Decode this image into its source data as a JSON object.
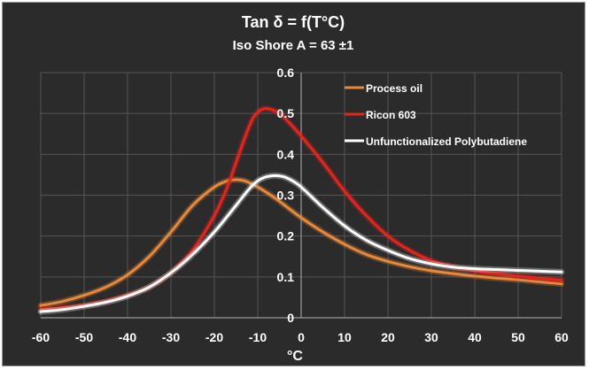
{
  "chart_data": {
    "type": "line",
    "title": "Tan δ = f(T°C)",
    "subtitle": "Iso Shore A = 63 ±1",
    "xlabel": "°C",
    "ylabel": "",
    "xlim": [
      -60,
      60
    ],
    "ylim": [
      0,
      0.6
    ],
    "xticks": [
      -60,
      -50,
      -40,
      -30,
      -20,
      -10,
      0,
      10,
      20,
      30,
      40,
      50,
      60
    ],
    "yticks": [
      0,
      0.1,
      0.2,
      0.3,
      0.4,
      0.5,
      0.6
    ],
    "x_tick_labels": [
      "-60",
      "-50",
      "-40",
      "-30",
      "-20",
      "-10",
      "0",
      "10",
      "20",
      "30",
      "40",
      "50",
      "60"
    ],
    "y_tick_labels": [
      "0",
      "0.1",
      "0.2",
      "0.3",
      "0.4",
      "0.5",
      "0.6"
    ],
    "grid": true,
    "legend_position": "top-right",
    "background_color": "#2b2b2b",
    "series": [
      {
        "name": "Process oil",
        "color": "#e8893a",
        "x": [
          -60,
          -55,
          -50,
          -45,
          -40,
          -35,
          -30,
          -25,
          -20,
          -17,
          -15,
          -13,
          -10,
          -7,
          -5,
          0,
          5,
          10,
          15,
          20,
          25,
          30,
          35,
          40,
          45,
          50,
          55,
          60
        ],
        "y": [
          0.03,
          0.04,
          0.055,
          0.075,
          0.105,
          0.15,
          0.21,
          0.275,
          0.32,
          0.335,
          0.338,
          0.335,
          0.32,
          0.3,
          0.285,
          0.245,
          0.21,
          0.18,
          0.155,
          0.138,
          0.125,
          0.115,
          0.108,
          0.102,
          0.097,
          0.093,
          0.088,
          0.083
        ]
      },
      {
        "name": "Ricon 603",
        "color": "#e8231c",
        "x": [
          -60,
          -55,
          -50,
          -45,
          -40,
          -35,
          -30,
          -25,
          -20,
          -17,
          -15,
          -13,
          -11,
          -9,
          -7,
          -5,
          -3,
          0,
          5,
          10,
          15,
          20,
          25,
          30,
          35,
          40,
          45,
          50,
          55,
          60
        ],
        "y": [
          0.02,
          0.025,
          0.03,
          0.04,
          0.055,
          0.075,
          0.11,
          0.165,
          0.25,
          0.32,
          0.38,
          0.44,
          0.49,
          0.51,
          0.51,
          0.5,
          0.48,
          0.445,
          0.38,
          0.31,
          0.25,
          0.2,
          0.165,
          0.14,
          0.125,
          0.115,
          0.108,
          0.102,
          0.097,
          0.092
        ]
      },
      {
        "name": "Unfunctionalized Polybutadiene",
        "color": "#ffffff",
        "x": [
          -60,
          -55,
          -50,
          -45,
          -40,
          -35,
          -30,
          -25,
          -20,
          -15,
          -12,
          -10,
          -8,
          -6,
          -4,
          -2,
          0,
          5,
          10,
          15,
          20,
          25,
          30,
          35,
          40,
          45,
          50,
          55,
          60
        ],
        "y": [
          0.015,
          0.02,
          0.028,
          0.038,
          0.053,
          0.075,
          0.11,
          0.155,
          0.21,
          0.275,
          0.315,
          0.335,
          0.345,
          0.348,
          0.345,
          0.335,
          0.32,
          0.27,
          0.225,
          0.19,
          0.165,
          0.145,
          0.132,
          0.124,
          0.12,
          0.118,
          0.116,
          0.114,
          0.112
        ]
      }
    ]
  }
}
